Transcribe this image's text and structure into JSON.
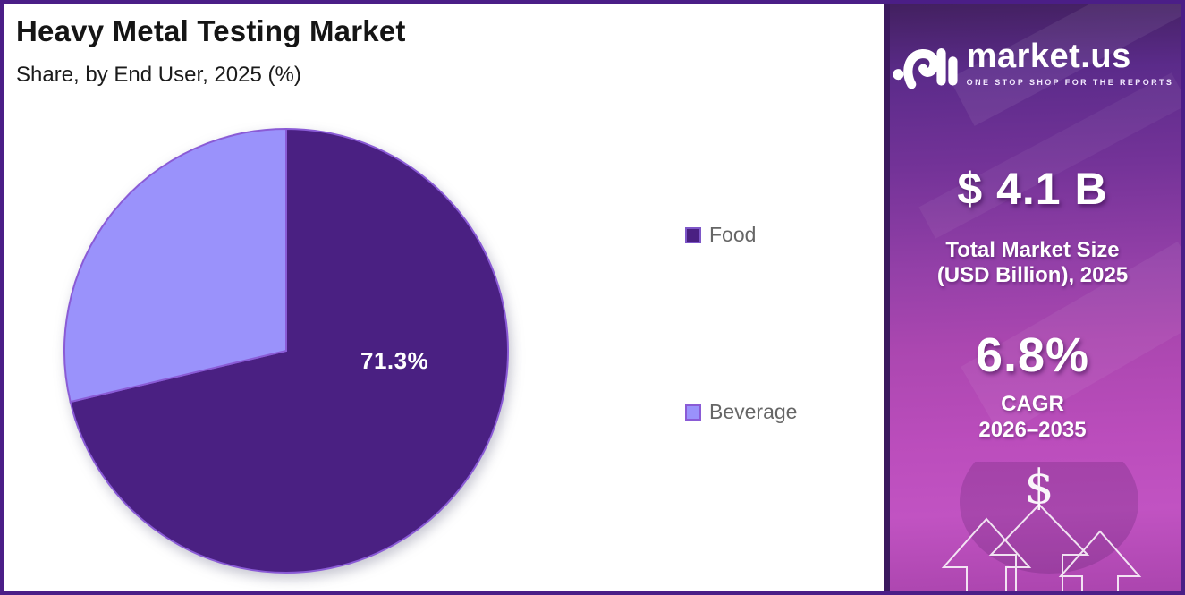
{
  "header": {
    "title": "Heavy Metal Testing Market",
    "subtitle": "Share, by End User, 2025 (%)"
  },
  "chart_data": {
    "type": "pie",
    "title": "Heavy Metal Testing Market",
    "subtitle": "Share, by End User, 2025 (%)",
    "categories": [
      "Food",
      "Beverage"
    ],
    "values": [
      71.3,
      28.7
    ],
    "unit": "%",
    "colors": [
      "#4a2082",
      "#9a92fb"
    ],
    "slice_border_color": "#8a5bd6",
    "data_labels": [
      "71.3%",
      ""
    ],
    "start_angle": "12 o'clock",
    "direction": "clockwise",
    "legend_position": "right"
  },
  "legend": {
    "items": [
      {
        "label": "Food",
        "color": "#4a2082",
        "border": "#7e57c8"
      },
      {
        "label": "Beverage",
        "color": "#9a92fb",
        "border": "#8a5bd6"
      }
    ]
  },
  "sidebar": {
    "logo": {
      "brand": "market.us",
      "tagline": "ONE STOP SHOP FOR THE REPORTS",
      "icon": "marketus-logo-icon"
    },
    "market_size": {
      "value": "$ 4.1 B",
      "label_line1": "Total Market Size",
      "label_line2": "(USD Billion), 2025"
    },
    "cagr": {
      "value": "6.8%",
      "label_line1": "CAGR",
      "label_line2": "2026–2035"
    },
    "dollar_symbol": "$"
  },
  "colors": {
    "frame_border": "#4b1e87",
    "background": "#ffffff",
    "legend_text": "#666666",
    "sidebar_top": "#5b2b8a",
    "sidebar_bottom": "#bb4dbc",
    "white": "#ffffff"
  }
}
